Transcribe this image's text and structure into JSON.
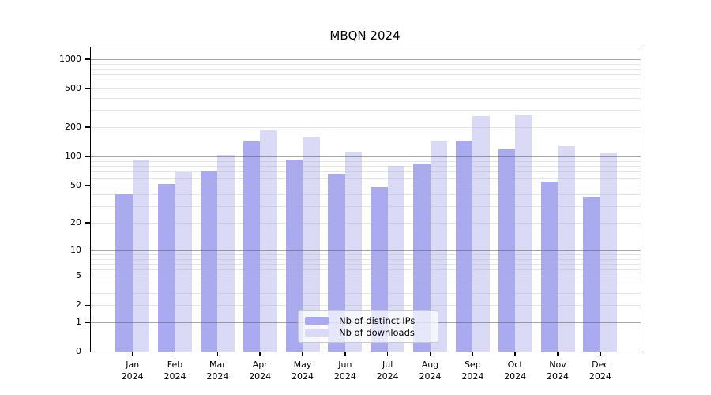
{
  "chart_data": {
    "type": "bar",
    "title": "MBQN 2024",
    "categories": [
      "Jan",
      "Feb",
      "Mar",
      "Apr",
      "May",
      "Jun",
      "Jul",
      "Aug",
      "Sep",
      "Oct",
      "Nov",
      "Dec"
    ],
    "x_tick_label_line2": "2024",
    "series": [
      {
        "name": "Nb of distinct IPs",
        "color": "#aaaaf0",
        "values": [
          40,
          52,
          71,
          142,
          93,
          66,
          48,
          85,
          147,
          119,
          55,
          38
        ]
      },
      {
        "name": "Nb of downloads",
        "color": "#dadaf7",
        "values": [
          92,
          68,
          103,
          186,
          160,
          112,
          80,
          143,
          260,
          272,
          127,
          107
        ]
      }
    ],
    "y_axis": {
      "scale": "log10(1+x)",
      "ticks": [
        0,
        1,
        2,
        5,
        10,
        20,
        50,
        100,
        200,
        500,
        1000
      ],
      "ylim": [
        0,
        1325
      ],
      "minor_gridlines": true
    },
    "legend": {
      "position": "bottom-center",
      "entries": [
        "Nb of distinct IPs",
        "Nb of downloads"
      ]
    },
    "xlabel": "",
    "ylabel": ""
  }
}
